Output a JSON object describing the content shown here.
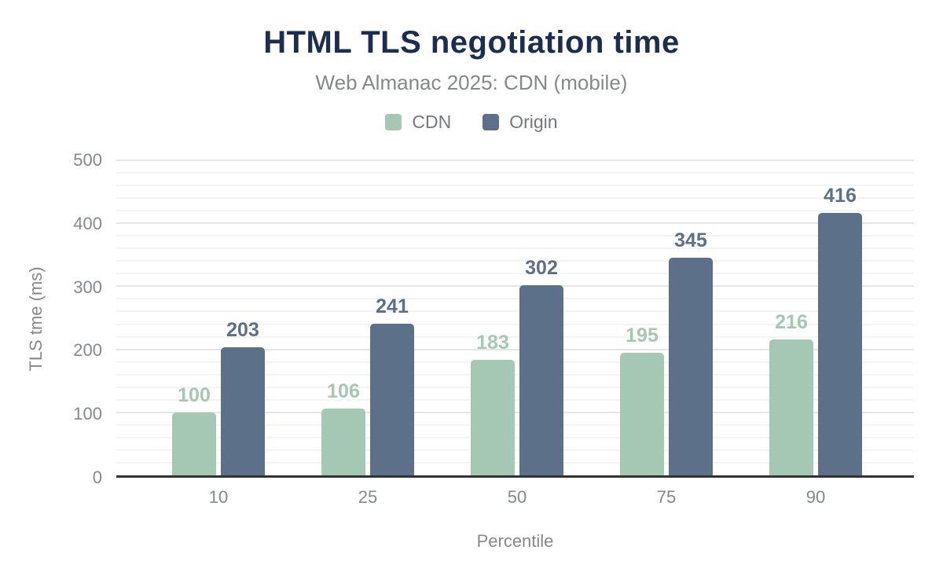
{
  "chart_data": {
    "type": "bar",
    "title": "HTML TLS negotiation time",
    "subtitle": "Web Almanac 2025: CDN (mobile)",
    "xlabel": "Percentile",
    "ylabel": "TLS tme (ms)",
    "categories": [
      "10",
      "25",
      "50",
      "75",
      "90"
    ],
    "series": [
      {
        "name": "CDN",
        "color": "#a5c8b5",
        "values": [
          100,
          106,
          183,
          195,
          216
        ]
      },
      {
        "name": "Origin",
        "color": "#5d7089",
        "values": [
          203,
          241,
          302,
          345,
          416
        ]
      }
    ],
    "ylim": [
      0,
      500
    ],
    "y_tick_labels": [
      "0",
      "100",
      "200",
      "300",
      "400",
      "500"
    ],
    "y_major_step": 100,
    "y_minor_step": 20,
    "grid": "horizontal",
    "legend_position": "top",
    "value_labels": true
  },
  "colors": {
    "title": "#1b2e4f",
    "subtitle": "#85898d",
    "axis_text": "#85898c",
    "legend_text": "#75797d",
    "baseline": "#333333",
    "grid_major": "#e6e6e6",
    "grid_minor": "#f4f4f4",
    "background": "#ffffff"
  }
}
